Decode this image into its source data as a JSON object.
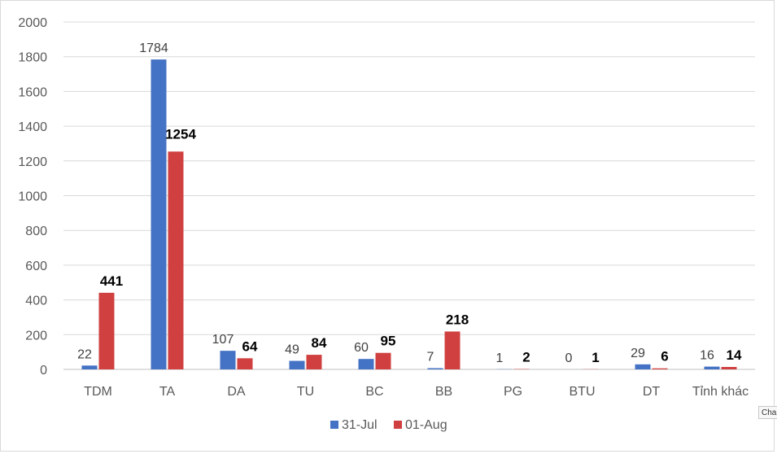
{
  "chart_data": {
    "type": "bar",
    "title": "",
    "xlabel": "",
    "ylabel": "",
    "ylim": [
      0,
      2000
    ],
    "yticks": [
      0,
      200,
      400,
      600,
      800,
      1000,
      1200,
      1400,
      1600,
      1800,
      2000
    ],
    "grid": true,
    "legend": "bottom",
    "categories": [
      "TDM",
      "TA",
      "DA",
      "TU",
      "BC",
      "BB",
      "PG",
      "BTU",
      "DT",
      "Tỉnh khác"
    ],
    "series": [
      {
        "name": "31-Jul",
        "color": "#4472c4",
        "values": [
          22,
          1784,
          107,
          49,
          60,
          7,
          1,
          0,
          29,
          16
        ]
      },
      {
        "name": "01-Aug",
        "color": "#d04040",
        "values": [
          441,
          1254,
          64,
          84,
          95,
          218,
          2,
          1,
          6,
          14
        ]
      }
    ]
  },
  "side_tag": "Cha"
}
